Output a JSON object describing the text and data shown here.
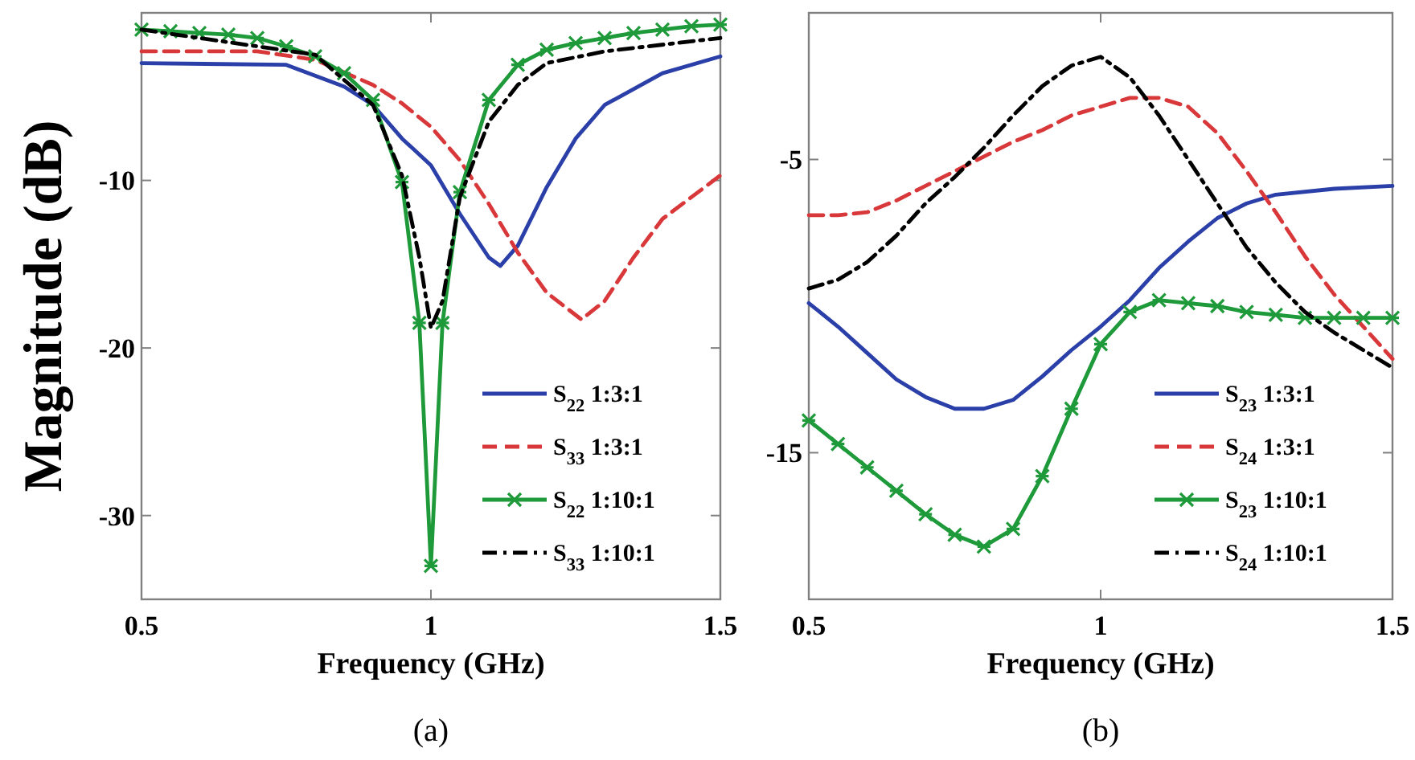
{
  "chart_data": [
    {
      "type": "line",
      "xlabel": "Frequency (GHz)",
      "ylabel": "Magnitude (dB)",
      "annotations": [
        "(a)"
      ],
      "xlim": [
        0.5,
        1.5
      ],
      "xticks": [
        0.5,
        1,
        1.5
      ],
      "ylim": [
        -35,
        0
      ],
      "yticks": [
        -10,
        -20,
        -30
      ],
      "grid": false,
      "legend": "bottom right",
      "series": [
        {
          "name": "S$_{22}$ 1:3:1",
          "color": "#2b3fa8",
          "line_style": "solid",
          "x": [
            0.5,
            0.75,
            0.85,
            0.9,
            0.95,
            1.0,
            1.05,
            1.1,
            1.12,
            1.15,
            1.2,
            1.25,
            1.3,
            1.4,
            1.5
          ],
          "values": [
            -3.0,
            -3.1,
            -4.4,
            -5.5,
            -7.5,
            -9.1,
            -12,
            -14.6,
            -15.1,
            -13.9,
            -10.4,
            -7.5,
            -5.5,
            -3.6,
            -2.6
          ]
        },
        {
          "name": "S$_{33}$ 1:3:1",
          "color": "#d9383a",
          "line_style": "dashed",
          "x": [
            0.5,
            0.7,
            0.8,
            0.9,
            0.95,
            1.0,
            1.05,
            1.1,
            1.15,
            1.2,
            1.26,
            1.3,
            1.35,
            1.4,
            1.45,
            1.5
          ],
          "values": [
            -2.3,
            -2.3,
            -2.8,
            -4.3,
            -5.4,
            -6.8,
            -8.8,
            -11.4,
            -14.3,
            -16.7,
            -18.3,
            -17.2,
            -14.6,
            -12.3,
            -11,
            -9.7
          ]
        },
        {
          "name": "S$_{22}$ 1:10:1",
          "color": "#1e9a3a",
          "line_style": "solid",
          "marker": "cross",
          "x": [
            0.5,
            0.55,
            0.6,
            0.65,
            0.7,
            0.75,
            0.8,
            0.85,
            0.9,
            0.95,
            0.98,
            1.0,
            1.02,
            1.05,
            1.1,
            1.15,
            1.2,
            1.25,
            1.3,
            1.35,
            1.4,
            1.45,
            1.5
          ],
          "values": [
            -1.0,
            -1.1,
            -1.2,
            -1.3,
            -1.5,
            -2.0,
            -2.6,
            -3.6,
            -5.2,
            -10.1,
            -18.5,
            -33,
            -18.5,
            -10.7,
            -5.2,
            -3.1,
            -2.2,
            -1.8,
            -1.5,
            -1.2,
            -1.0,
            -0.8,
            -0.7
          ]
        },
        {
          "name": "S$_{33}$ 1:10:1",
          "color": "#000000",
          "line_style": "dashdot",
          "x": [
            0.5,
            0.8,
            0.9,
            0.95,
            0.98,
            1.0,
            1.02,
            1.05,
            1.1,
            1.15,
            1.2,
            1.3,
            1.5
          ],
          "values": [
            -1.0,
            -2.5,
            -5.5,
            -9.7,
            -14.6,
            -18.8,
            -17.2,
            -11,
            -6.5,
            -4.3,
            -3.0,
            -2.3,
            -1.5
          ]
        }
      ]
    },
    {
      "type": "line",
      "xlabel": "Frequency (GHz)",
      "annotations": [
        "(b)"
      ],
      "xlim": [
        0.5,
        1.5
      ],
      "xticks": [
        0.5,
        1,
        1.5
      ],
      "ylim": [
        -20,
        0
      ],
      "yticks": [
        -5,
        -15
      ],
      "grid": false,
      "legend": "bottom right",
      "series": [
        {
          "name": "S$_{23}$ 1:3:1",
          "color": "#2b3fa8",
          "line_style": "solid",
          "x": [
            0.5,
            0.55,
            0.6,
            0.65,
            0.7,
            0.75,
            0.8,
            0.85,
            0.9,
            0.95,
            1.0,
            1.05,
            1.1,
            1.15,
            1.2,
            1.25,
            1.3,
            1.4,
            1.5
          ],
          "values": [
            -9.9,
            -10.7,
            -11.6,
            -12.5,
            -13.1,
            -13.5,
            -13.5,
            -13.2,
            -12.4,
            -11.5,
            -10.7,
            -9.8,
            -8.7,
            -7.8,
            -7.0,
            -6.5,
            -6.2,
            -6.0,
            -5.9
          ]
        },
        {
          "name": "S$_{24}$ 1:3:1",
          "color": "#d9383a",
          "line_style": "dashed",
          "x": [
            0.5,
            0.55,
            0.6,
            0.65,
            0.7,
            0.75,
            0.8,
            0.85,
            0.9,
            0.95,
            1.0,
            1.05,
            1.1,
            1.15,
            1.2,
            1.25,
            1.3,
            1.35,
            1.4,
            1.45,
            1.5
          ],
          "values": [
            -6.9,
            -6.9,
            -6.8,
            -6.4,
            -5.9,
            -5.4,
            -4.9,
            -4.4,
            -4.0,
            -3.5,
            -3.2,
            -2.9,
            -2.9,
            -3.2,
            -4.1,
            -5.4,
            -6.8,
            -8.3,
            -9.6,
            -10.7,
            -11.8
          ]
        },
        {
          "name": "S$_{23}$ 1:10:1",
          "color": "#1e9a3a",
          "line_style": "solid",
          "marker": "cross",
          "x": [
            0.5,
            0.55,
            0.6,
            0.65,
            0.7,
            0.75,
            0.8,
            0.85,
            0.9,
            0.95,
            1.0,
            1.05,
            1.1,
            1.15,
            1.2,
            1.25,
            1.3,
            1.35,
            1.4,
            1.45,
            1.5
          ],
          "values": [
            -13.9,
            -14.7,
            -15.5,
            -16.3,
            -17.1,
            -17.8,
            -18.2,
            -17.6,
            -15.8,
            -13.5,
            -11.3,
            -10.2,
            -9.8,
            -9.9,
            -10.0,
            -10.2,
            -10.3,
            -10.4,
            -10.4,
            -10.4,
            -10.4
          ]
        },
        {
          "name": "S$_{24}$ 1:10:1",
          "color": "#000000",
          "line_style": "dashdot",
          "x": [
            0.5,
            0.55,
            0.6,
            0.65,
            0.7,
            0.75,
            0.8,
            0.85,
            0.9,
            0.95,
            1.0,
            1.05,
            1.1,
            1.15,
            1.2,
            1.25,
            1.3,
            1.35,
            1.4,
            1.45,
            1.5
          ],
          "values": [
            -9.4,
            -9.1,
            -8.5,
            -7.6,
            -6.5,
            -5.6,
            -4.6,
            -3.5,
            -2.5,
            -1.8,
            -1.5,
            -2.2,
            -3.5,
            -5.0,
            -6.5,
            -8.0,
            -9.2,
            -10.2,
            -10.9,
            -11.5,
            -12.1
          ]
        }
      ]
    }
  ]
}
